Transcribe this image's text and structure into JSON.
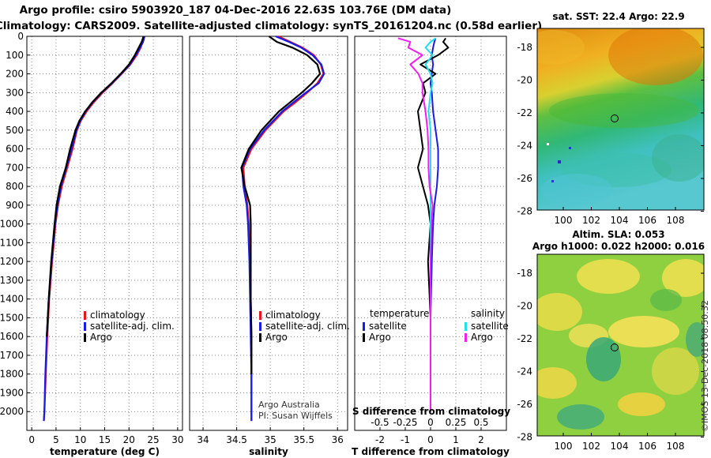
{
  "title": {
    "line1": "Argo profile: csiro 5903920_187 04-Dec-2016 22.63S 103.76E (DM data)",
    "line2": "Climatology: CARS2009. Satellite-adjusted climatology: synTS_20161204.nc (0.58d earlier)"
  },
  "credit": {
    "line1": "Argo Australia",
    "line2": "PI: Susan Wijffels"
  },
  "watermark": "©IMOS 13-Dec-2018 08:50:32",
  "colors": {
    "climatology": "#e8141e",
    "satellite": "#1a1ae6",
    "argo": "#000000",
    "sal_satellite": "#20e0e8",
    "sal_argo": "#f01ef0"
  },
  "maps": {
    "sst": {
      "title": "sat. SST: 22.4 Argo: 22.9",
      "lat_ticks": [
        "-18",
        "-20",
        "-22",
        "-24",
        "-26",
        "-28"
      ],
      "lon_ticks": [
        "100",
        "102",
        "104",
        "106",
        "108"
      ]
    },
    "sla": {
      "title1": "Altim. SLA: 0.053",
      "title2": "Argo h1000: 0.022 h2000: 0.016",
      "lat_ticks": [
        "-18",
        "-20",
        "-22",
        "-24",
        "-26",
        "-28"
      ],
      "lon_ticks": [
        "100",
        "102",
        "104",
        "106",
        "108"
      ]
    }
  },
  "chart_data": [
    {
      "type": "line",
      "title": "temperature profile",
      "xlabel": "temperature (deg C)",
      "ylabel": "pressure",
      "xlim": [
        -1,
        31
      ],
      "ylim": [
        2100,
        0
      ],
      "xticks": [
        0,
        5,
        10,
        15,
        20,
        25,
        30
      ],
      "xtick_labels": [
        "0",
        "5",
        "10",
        "15",
        "20",
        "25",
        "30"
      ],
      "ytick_labels": [
        "0",
        "100",
        "200",
        "300",
        "400",
        "500",
        "600",
        "700",
        "800",
        "900",
        "1000",
        "1100",
        "1200",
        "1300",
        "1400",
        "1500",
        "1600",
        "1700",
        "1800",
        "1900",
        "2000"
      ],
      "legend": [
        "climatology",
        "satellite-adj. clim.",
        "Argo"
      ],
      "depth": [
        0,
        30,
        60,
        100,
        150,
        200,
        250,
        300,
        350,
        400,
        450,
        500,
        600,
        700,
        800,
        900,
        1000,
        1200,
        1400,
        1600,
        1800,
        2000,
        2050
      ],
      "series": [
        {
          "name": "climatology",
          "values": [
            23.0,
            22.8,
            22.4,
            21.6,
            20.3,
            18.5,
            16.6,
            14.6,
            12.8,
            11.3,
            10.1,
            9.3,
            8.4,
            7.3,
            6.2,
            5.4,
            4.9,
            4.2,
            3.6,
            3.2,
            2.9,
            2.6,
            2.5
          ]
        },
        {
          "name": "satellite-adj. clim.",
          "values": [
            23.2,
            22.9,
            22.3,
            21.4,
            20.2,
            18.4,
            16.5,
            14.4,
            12.6,
            11.1,
            10.0,
            9.2,
            8.2,
            7.1,
            6.0,
            5.3,
            4.8,
            4.1,
            3.5,
            3.1,
            2.8,
            2.6,
            2.5
          ]
        },
        {
          "name": "Argo",
          "values": [
            23.0,
            22.6,
            22.0,
            21.2,
            20.0,
            18.3,
            16.4,
            14.3,
            12.5,
            11.0,
            9.8,
            9.0,
            7.9,
            7.0,
            5.8,
            5.1,
            4.7,
            4.0,
            3.5,
            3.1,
            null,
            null,
            null
          ]
        }
      ]
    },
    {
      "type": "line",
      "title": "salinity profile",
      "xlabel": "salinity",
      "xlim": [
        33.8,
        36.15
      ],
      "ylim": [
        2100,
        0
      ],
      "xticks": [
        34,
        34.5,
        35,
        35.5,
        36
      ],
      "xtick_labels": [
        "34",
        "34.5",
        "35",
        "35.5",
        "36"
      ],
      "legend": [
        "climatology",
        "satellite-adj. clim.",
        "Argo"
      ],
      "depth": [
        0,
        30,
        60,
        100,
        150,
        200,
        250,
        300,
        350,
        400,
        500,
        600,
        700,
        800,
        900,
        1000,
        1200,
        1400,
        1600,
        1800,
        2000,
        2050
      ],
      "series": [
        {
          "name": "climatology",
          "values": [
            35.12,
            35.3,
            35.48,
            35.65,
            35.75,
            35.79,
            35.7,
            35.55,
            35.38,
            35.2,
            34.93,
            34.72,
            34.6,
            34.62,
            34.66,
            34.68,
            34.7,
            34.71,
            34.72,
            34.72,
            34.72,
            34.72
          ]
        },
        {
          "name": "satellite-adj. clim.",
          "values": [
            35.08,
            35.28,
            35.46,
            35.63,
            35.76,
            35.8,
            35.72,
            35.53,
            35.35,
            35.18,
            34.91,
            34.7,
            34.58,
            34.6,
            34.65,
            34.67,
            34.69,
            34.7,
            34.71,
            34.72,
            34.72,
            34.72
          ]
        },
        {
          "name": "Argo",
          "values": [
            34.98,
            35.1,
            35.33,
            35.55,
            35.7,
            35.74,
            35.62,
            35.47,
            35.3,
            35.13,
            34.87,
            34.68,
            34.57,
            34.62,
            34.7,
            34.71,
            34.71,
            34.71,
            34.72,
            34.72,
            null,
            null
          ]
        }
      ]
    },
    {
      "type": "line",
      "title": "difference from climatology",
      "xlabel": "T difference from climatology",
      "xlabel_secondary": "S difference from climatology",
      "xlim": [
        -3,
        3
      ],
      "ylim": [
        2100,
        0
      ],
      "xticks": [
        -2,
        -1,
        0,
        1,
        2
      ],
      "xtick_labels": [
        "-2",
        "-1",
        "0",
        "1",
        "2"
      ],
      "secondary_ticks": [
        -0.5,
        -0.25,
        0,
        0.25,
        0.5
      ],
      "secondary_tick_labels": [
        "-0.5",
        "-0.25",
        "0",
        "0.25",
        "0.5"
      ],
      "legend": {
        "temperature": [
          "satellite",
          "Argo"
        ],
        "salinity": [
          "satellite",
          "Argo"
        ]
      },
      "legend_headers": {
        "left": "temperature",
        "right": "salinity"
      },
      "depth": [
        10,
        30,
        60,
        100,
        150,
        200,
        250,
        300,
        400,
        500,
        600,
        700,
        800,
        900,
        1000,
        1200,
        1500,
        1800,
        2000
      ],
      "series": [
        {
          "name": "temperature satellite",
          "values": [
            0.2,
            0.15,
            0.1,
            0.05,
            0.1,
            0.05,
            0.0,
            0.05,
            0.1,
            0.2,
            0.3,
            0.3,
            0.25,
            0.15,
            0.1,
            0.05,
            0.0,
            0.0,
            0.0
          ]
        },
        {
          "name": "temperature Argo",
          "values": [
            0.6,
            0.5,
            0.7,
            0.3,
            -0.4,
            0.2,
            -0.3,
            -0.2,
            -0.5,
            -0.4,
            -0.3,
            -0.5,
            -0.3,
            -0.1,
            0.0,
            -0.1,
            0.0,
            0.0,
            0.0
          ]
        },
        {
          "name": "salinity satellite",
          "values": [
            0.05,
            0.0,
            -0.05,
            0.02,
            -0.05,
            0.0,
            0.02,
            0.0,
            -0.02,
            0.0,
            0.0,
            0.0,
            0.0,
            0.0,
            0.0,
            0.0,
            0.0,
            0.0,
            0.0
          ]
        },
        {
          "name": "salinity Argo",
          "values": [
            -0.32,
            -0.2,
            -0.22,
            -0.08,
            -0.2,
            -0.12,
            -0.08,
            -0.08,
            -0.05,
            -0.03,
            -0.02,
            -0.02,
            -0.01,
            0.02,
            0.01,
            0.0,
            0.0,
            0.0,
            0.0
          ]
        }
      ]
    }
  ]
}
